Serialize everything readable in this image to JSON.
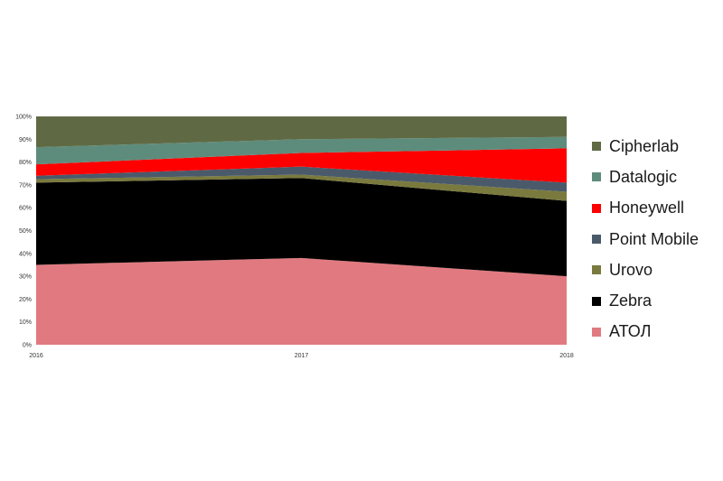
{
  "chart_data": {
    "type": "area",
    "stacked": "percent",
    "categories": [
      "2016",
      "2017",
      "2018"
    ],
    "ylim": [
      0,
      100
    ],
    "y_ticks": [
      "0%",
      "10%",
      "20%",
      "30%",
      "40%",
      "50%",
      "60%",
      "70%",
      "80%",
      "90%",
      "100%"
    ],
    "grid": false,
    "legend_position": "right",
    "series": [
      {
        "name": "АТОЛ",
        "color": "#e07a80",
        "values": [
          35,
          38,
          30
        ]
      },
      {
        "name": "Zebra",
        "color": "#000000",
        "values": [
          36,
          35,
          33
        ]
      },
      {
        "name": "Urovo",
        "color": "#7a7a3e",
        "values": [
          1.5,
          1.5,
          4
        ]
      },
      {
        "name": "Point Mobile",
        "color": "#4a5a6a",
        "values": [
          1.5,
          3.5,
          4
        ]
      },
      {
        "name": "Honeywell",
        "color": "#ff0000",
        "values": [
          5,
          6,
          15
        ]
      },
      {
        "name": "Datalogic",
        "color": "#5e8c7c",
        "values": [
          7.5,
          6,
          5
        ]
      },
      {
        "name": "Cipherlab",
        "color": "#5f6a44",
        "values": [
          13.5,
          10,
          9
        ]
      }
    ]
  }
}
